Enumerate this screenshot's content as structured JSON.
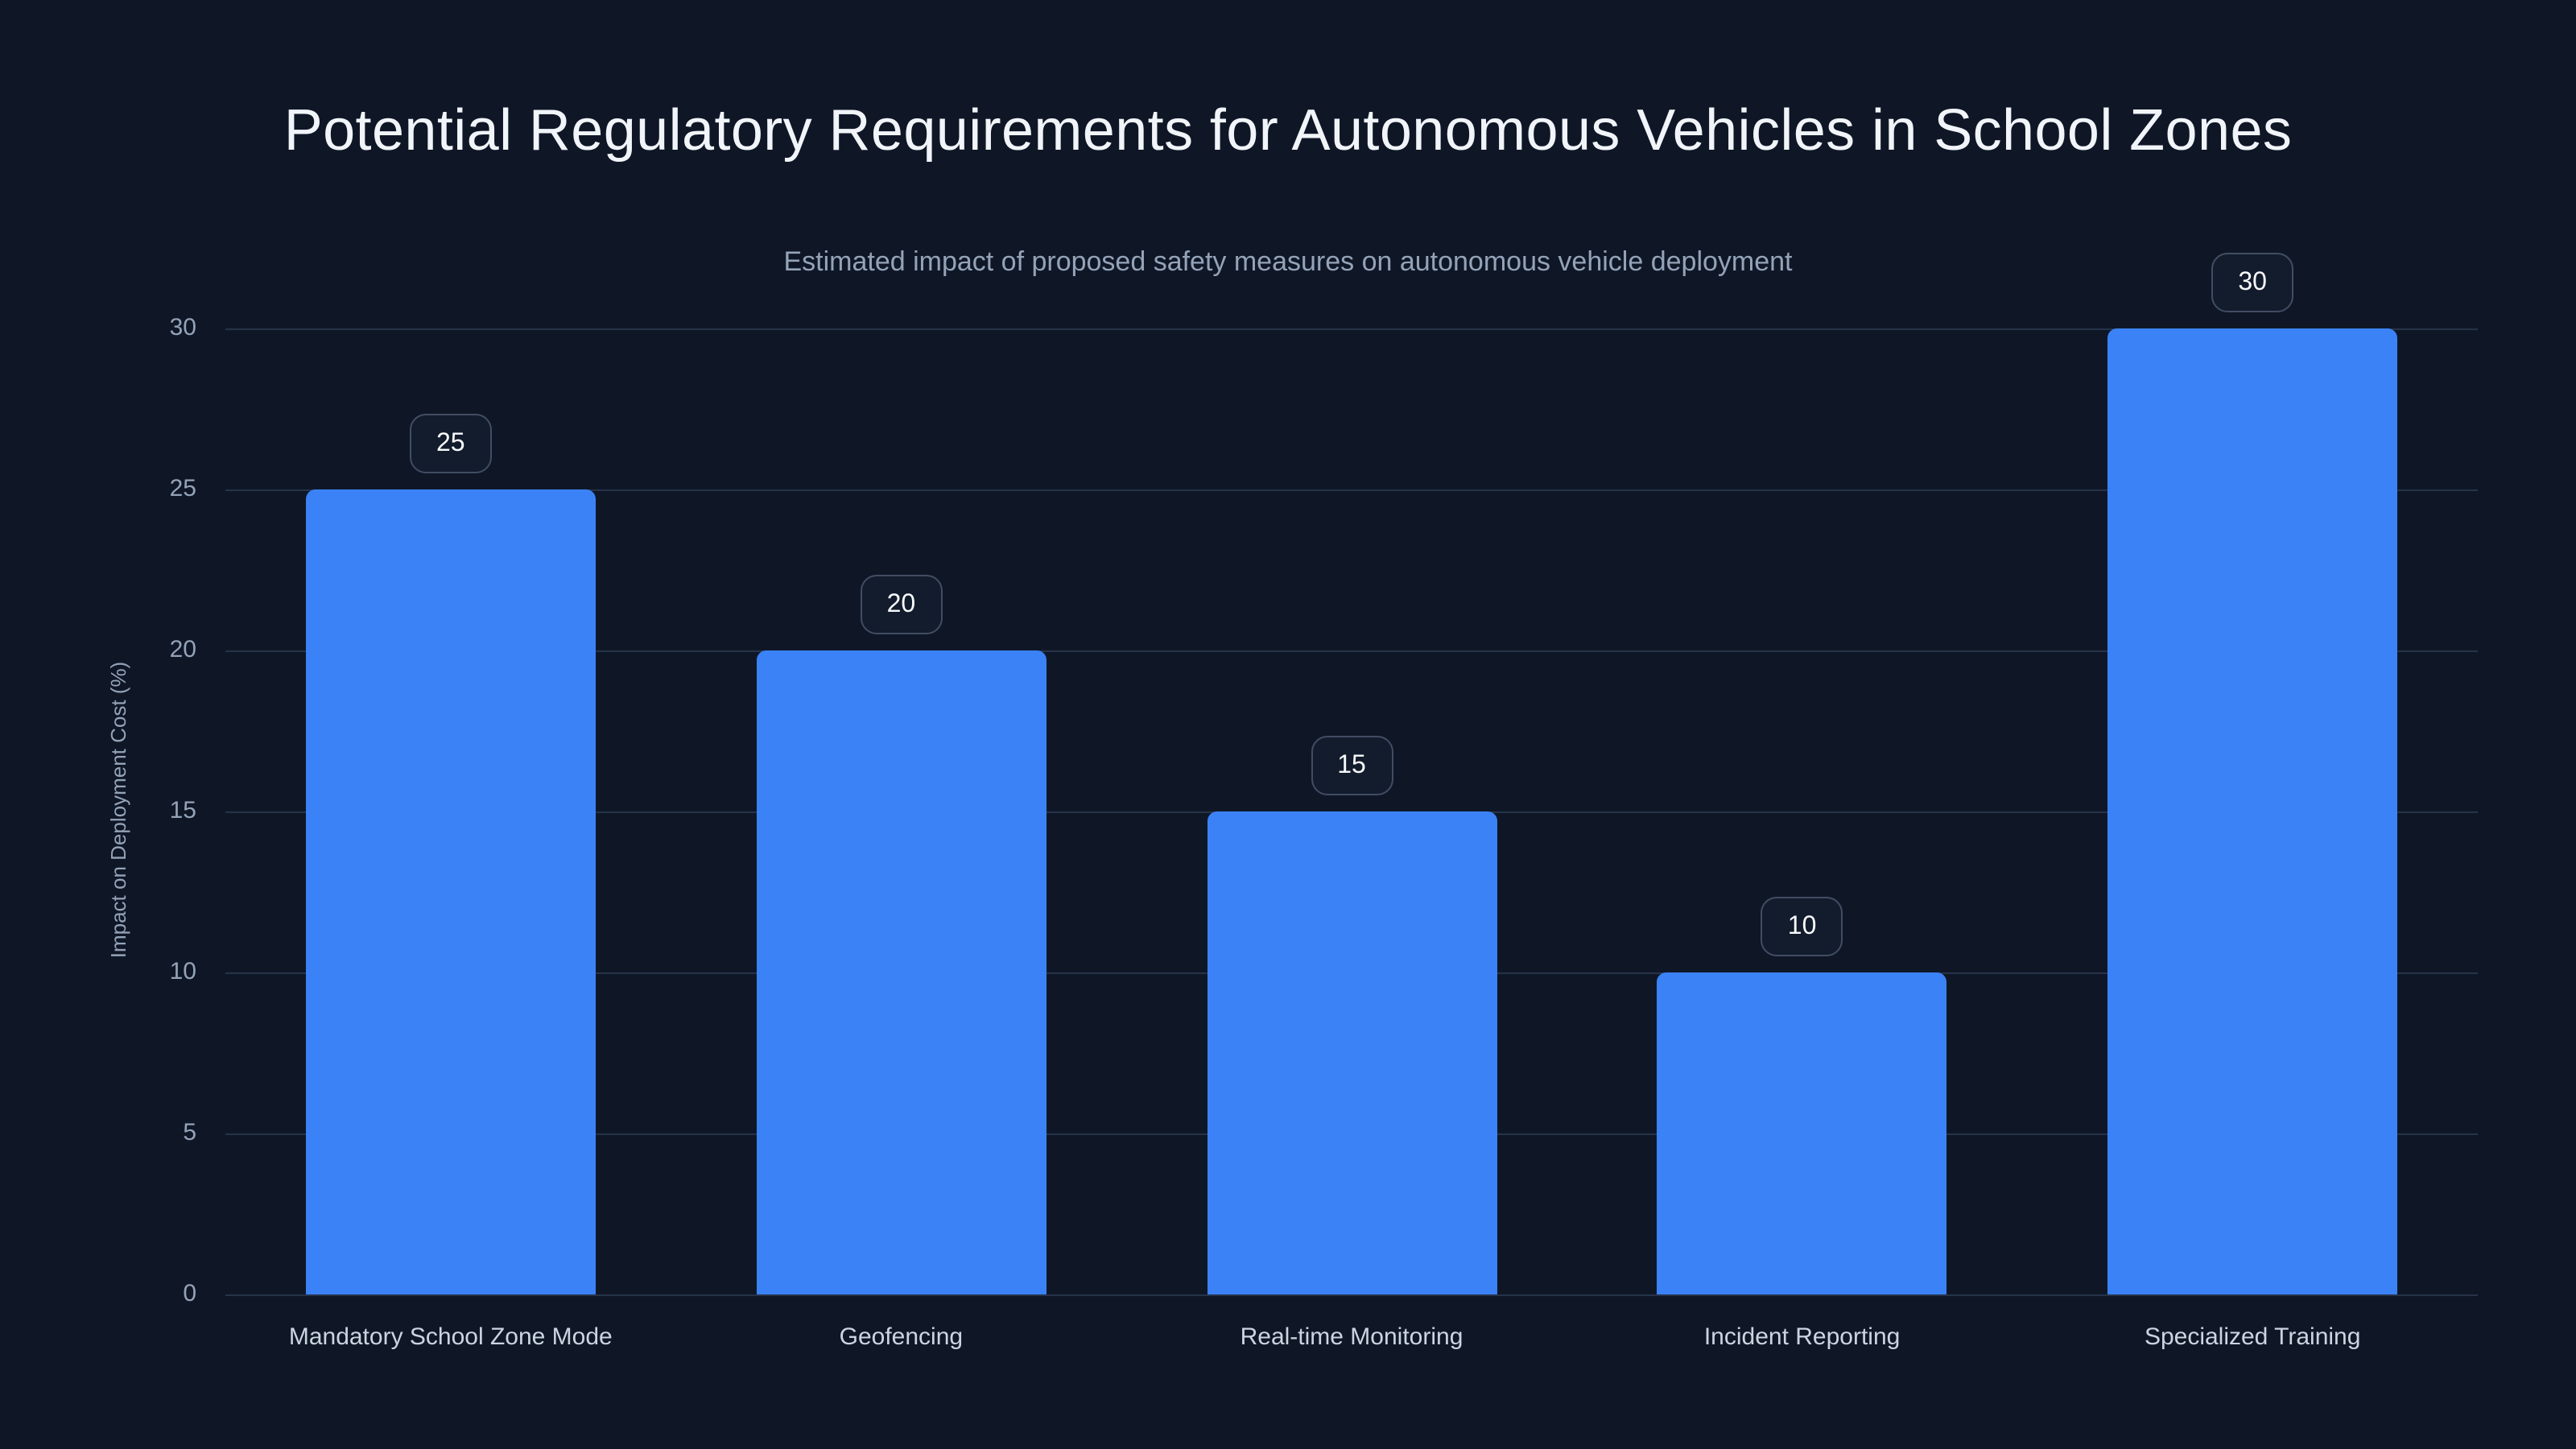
{
  "title": "Potential Regulatory Requirements for Autonomous Vehicles in School Zones",
  "subtitle": "Estimated impact of proposed safety measures on autonomous vehicle deployment",
  "chart_data": {
    "type": "bar",
    "title": "Potential Regulatory Requirements for Autonomous Vehicles in School Zones",
    "subtitle": "Estimated impact of proposed safety measures on autonomous vehicle deployment",
    "categories": [
      "Mandatory School Zone Mode",
      "Geofencing",
      "Real-time Monitoring",
      "Incident Reporting",
      "Specialized Training"
    ],
    "values": [
      25,
      20,
      15,
      10,
      30
    ],
    "value_labels": [
      "25",
      "20",
      "15",
      "10",
      "30"
    ],
    "xlabel": "",
    "ylabel": "Impact on Deployment Cost (%)",
    "ylim": [
      0,
      30
    ],
    "yticks": [
      0,
      5,
      10,
      15,
      20,
      25,
      30
    ],
    "grid": true,
    "legend": false
  },
  "colors": {
    "background": "#0f1727",
    "bar": "#3b82f6",
    "gridline": "#273349",
    "title": "#f1f5f9",
    "subtitle": "#94a3b8",
    "y_tick": "#94a3b8",
    "x_label": "#cbd5e1",
    "badge_border": "#414d63",
    "badge_text": "#f8fafc"
  }
}
